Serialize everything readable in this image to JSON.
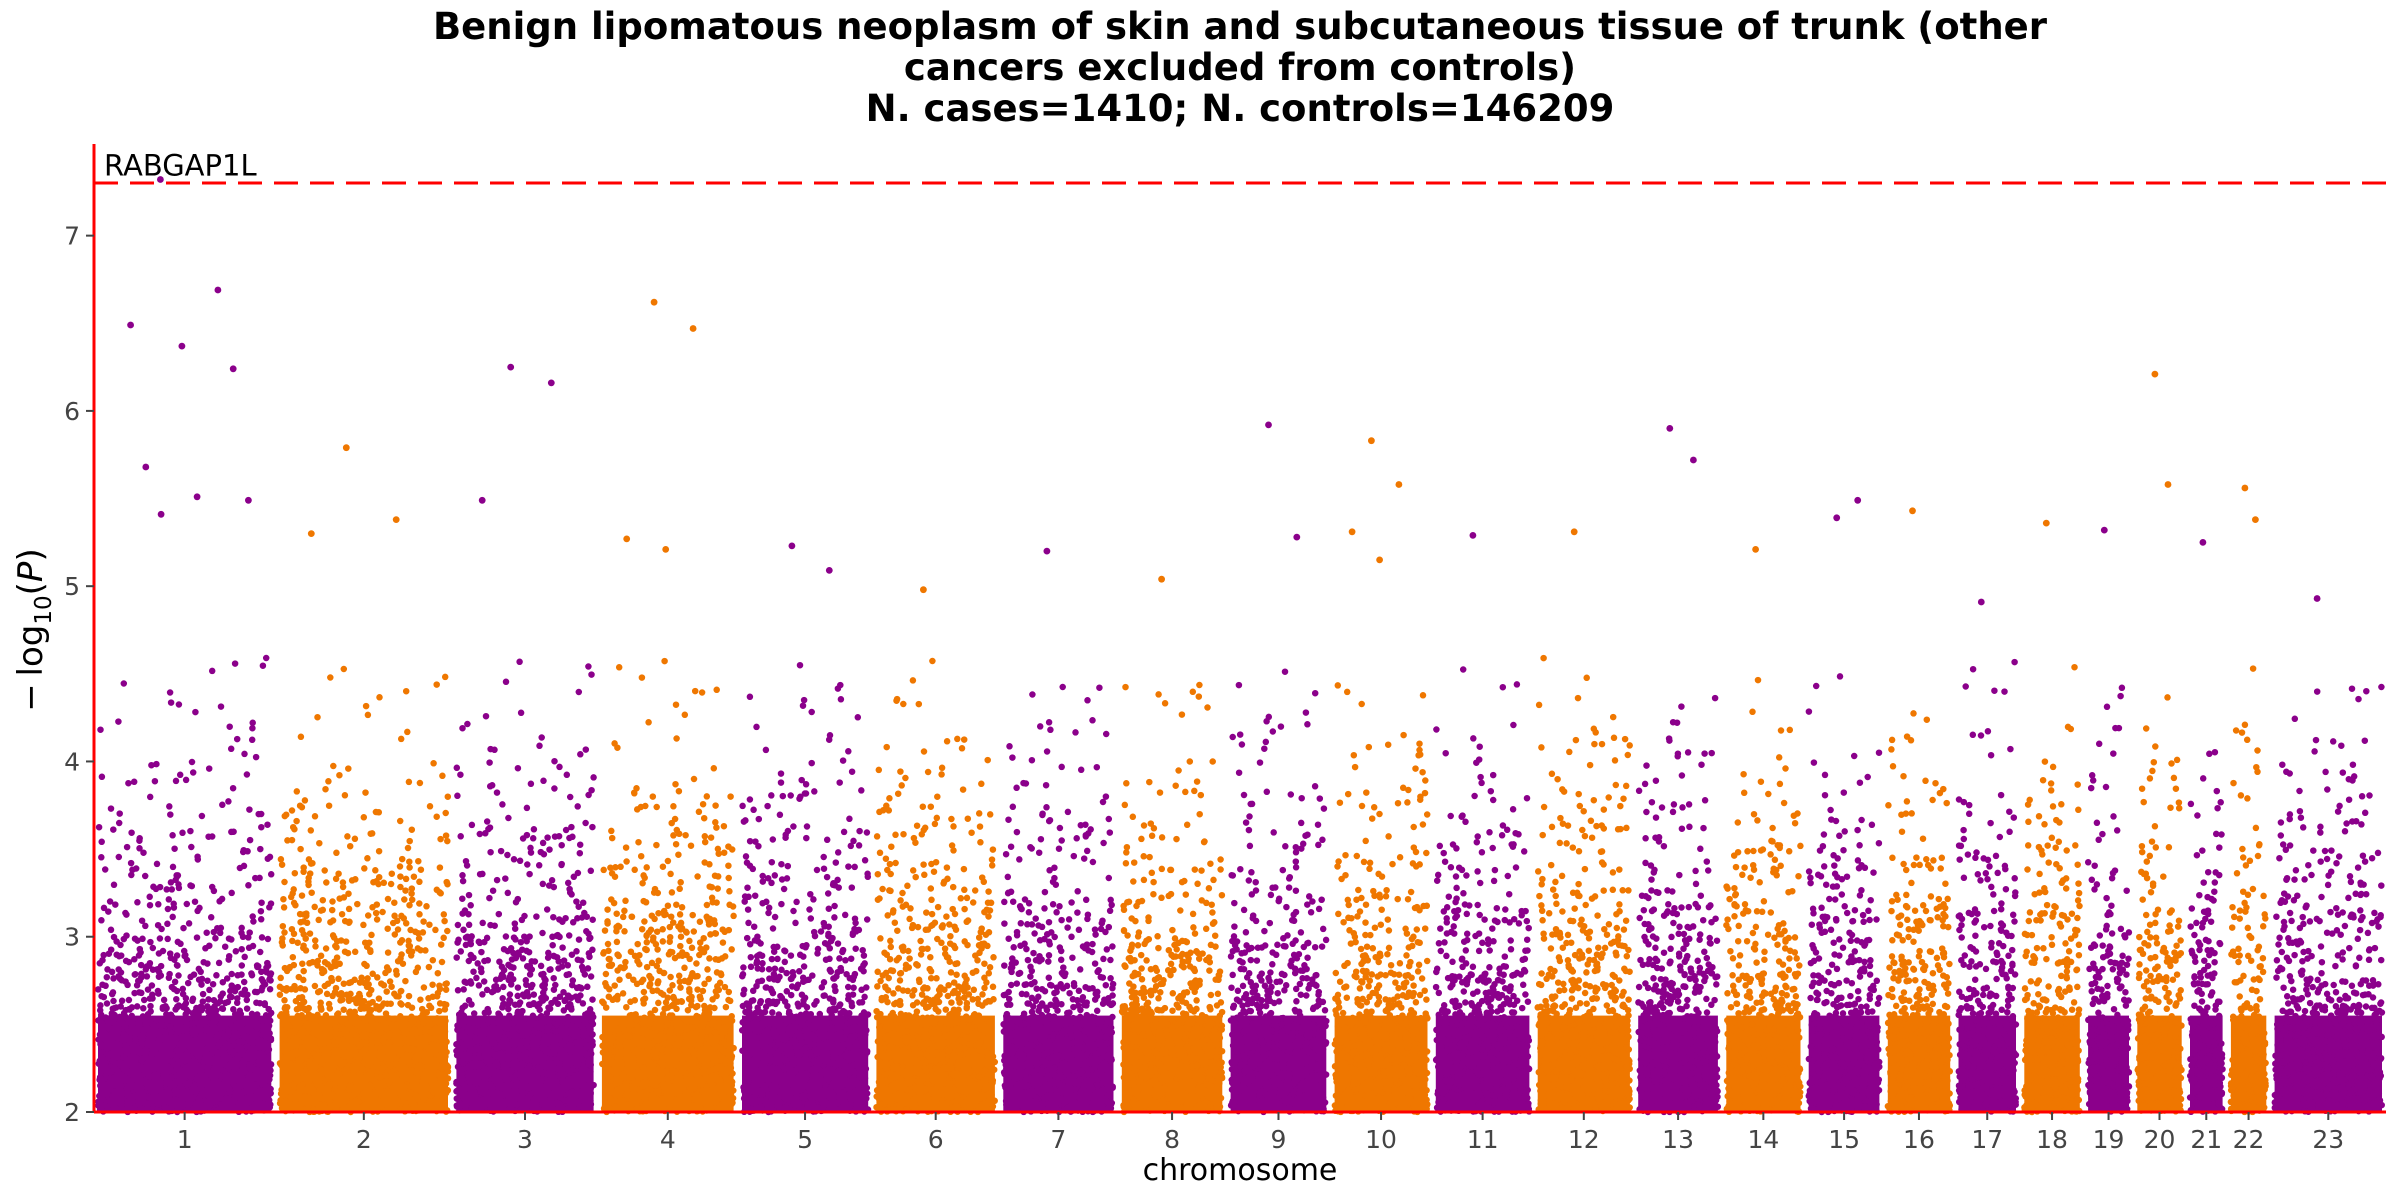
{
  "chart_data": {
    "type": "scatter",
    "title": [
      "Benign lipomatous neoplasm of skin and subcutaneous tissue of trunk (other",
      "cancers excluded from controls)",
      "N. cases=1410; N. controls=146209"
    ],
    "xlabel": "chromosome",
    "ylabel": "−log10(P)",
    "ylim": [
      2,
      7.5
    ],
    "yticks": [
      2,
      3,
      4,
      5,
      6,
      7
    ],
    "grid": false,
    "series_colors": [
      "#8b008b",
      "#ef7700"
    ],
    "threshold": {
      "value": 7.3,
      "color": "#ff0000",
      "style": "dashed"
    },
    "annotation": {
      "label": "RABGAP1L",
      "chromosome": "1",
      "y": 7.32
    },
    "chromosomes": [
      {
        "label": "1",
        "group": 0
      },
      {
        "label": "2",
        "group": 1
      },
      {
        "label": "3",
        "group": 0
      },
      {
        "label": "4",
        "group": 1
      },
      {
        "label": "5",
        "group": 0
      },
      {
        "label": "6",
        "group": 1
      },
      {
        "label": "7",
        "group": 0
      },
      {
        "label": "8",
        "group": 1
      },
      {
        "label": "9",
        "group": 0
      },
      {
        "label": "10",
        "group": 1
      },
      {
        "label": "11",
        "group": 0
      },
      {
        "label": "12",
        "group": 1
      },
      {
        "label": "13",
        "group": 0
      },
      {
        "label": "14",
        "group": 1
      },
      {
        "label": "15",
        "group": 0
      },
      {
        "label": "16",
        "group": 1
      },
      {
        "label": "17",
        "group": 0
      },
      {
        "label": "18",
        "group": 1
      },
      {
        "label": "19",
        "group": 0
      },
      {
        "label": "20",
        "group": 1
      },
      {
        "label": "21",
        "group": 0
      },
      {
        "label": "22",
        "group": 1
      },
      {
        "label": "23",
        "group": 0
      }
    ],
    "top_hits": [
      {
        "chromosome": "1",
        "y": 7.32
      },
      {
        "chromosome": "1",
        "y": 6.69
      },
      {
        "chromosome": "1",
        "y": 6.49
      },
      {
        "chromosome": "1",
        "y": 6.37
      },
      {
        "chromosome": "1",
        "y": 6.24
      },
      {
        "chromosome": "1",
        "y": 5.68
      },
      {
        "chromosome": "1",
        "y": 5.51
      },
      {
        "chromosome": "1",
        "y": 5.49
      },
      {
        "chromosome": "1",
        "y": 5.41
      },
      {
        "chromosome": "2",
        "y": 5.79
      },
      {
        "chromosome": "2",
        "y": 5.38
      },
      {
        "chromosome": "2",
        "y": 5.3
      },
      {
        "chromosome": "3",
        "y": 6.25
      },
      {
        "chromosome": "3",
        "y": 6.16
      },
      {
        "chromosome": "3",
        "y": 5.49
      },
      {
        "chromosome": "4",
        "y": 6.62
      },
      {
        "chromosome": "4",
        "y": 6.47
      },
      {
        "chromosome": "4",
        "y": 5.27
      },
      {
        "chromosome": "4",
        "y": 5.21
      },
      {
        "chromosome": "5",
        "y": 5.23
      },
      {
        "chromosome": "5",
        "y": 5.09
      },
      {
        "chromosome": "6",
        "y": 4.98
      },
      {
        "chromosome": "7",
        "y": 5.2
      },
      {
        "chromosome": "8",
        "y": 5.04
      },
      {
        "chromosome": "9",
        "y": 5.92
      },
      {
        "chromosome": "9",
        "y": 5.28
      },
      {
        "chromosome": "10",
        "y": 5.83
      },
      {
        "chromosome": "10",
        "y": 5.58
      },
      {
        "chromosome": "10",
        "y": 5.31
      },
      {
        "chromosome": "10",
        "y": 5.15
      },
      {
        "chromosome": "11",
        "y": 5.29
      },
      {
        "chromosome": "12",
        "y": 5.31
      },
      {
        "chromosome": "13",
        "y": 5.9
      },
      {
        "chromosome": "13",
        "y": 5.72
      },
      {
        "chromosome": "14",
        "y": 5.21
      },
      {
        "chromosome": "15",
        "y": 5.39
      },
      {
        "chromosome": "15",
        "y": 5.49
      },
      {
        "chromosome": "16",
        "y": 5.43
      },
      {
        "chromosome": "17",
        "y": 4.91
      },
      {
        "chromosome": "18",
        "y": 5.36
      },
      {
        "chromosome": "19",
        "y": 5.32
      },
      {
        "chromosome": "20",
        "y": 6.21
      },
      {
        "chromosome": "20",
        "y": 5.58
      },
      {
        "chromosome": "21",
        "y": 5.25
      },
      {
        "chromosome": "22",
        "y": 5.56
      },
      {
        "chromosome": "22",
        "y": 5.38
      },
      {
        "chromosome": "23",
        "y": 4.93
      }
    ]
  }
}
